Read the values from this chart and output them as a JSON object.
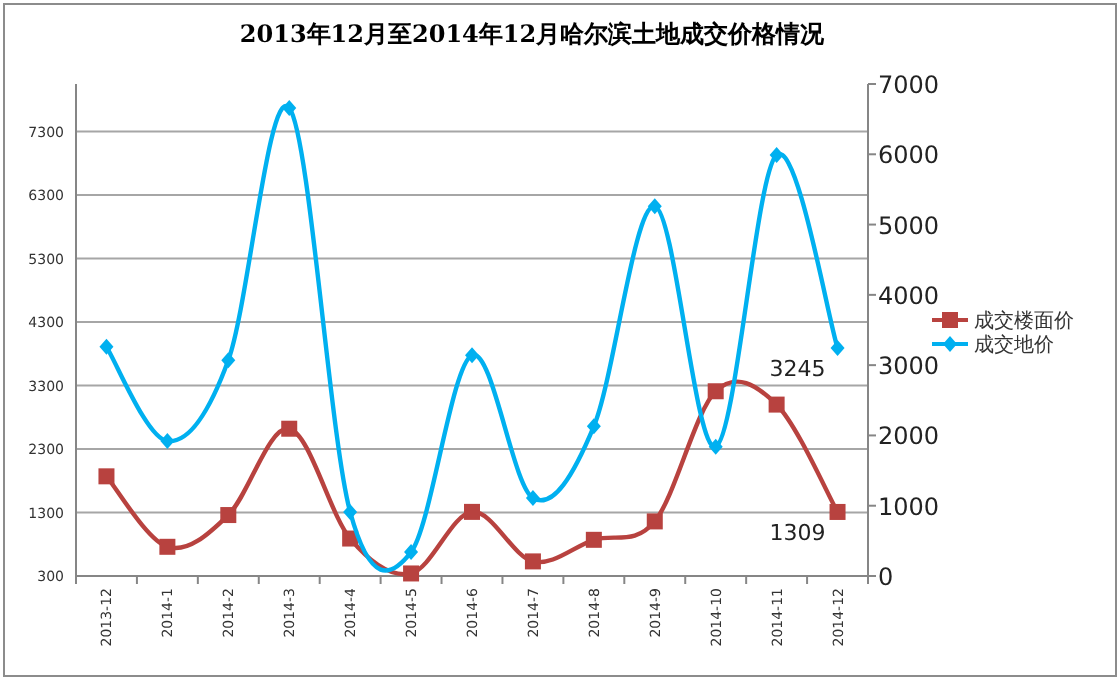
{
  "chart_data": {
    "type": "line",
    "title": "2013年12月至2014年12月哈尔滨土地成交价格情况",
    "categories": [
      "2013-12",
      "2014-1",
      "2014-2",
      "2014-3",
      "2014-4",
      "2014-5",
      "2014-6",
      "2014-7",
      "2014-8",
      "2014-9",
      "2014-10",
      "2014-11",
      "2014-12"
    ],
    "series": [
      {
        "name": "成交楼面价",
        "color": "#b8423f",
        "marker": "square",
        "values": [
          1870,
          760,
          1260,
          2620,
          890,
          340,
          1310,
          530,
          870,
          1160,
          3210,
          3000,
          1309
        ],
        "value_labels": [
          null,
          null,
          null,
          null,
          null,
          null,
          null,
          null,
          null,
          null,
          null,
          null,
          "1309"
        ]
      },
      {
        "name": "成交地价",
        "color": "#00b0f0",
        "marker": "diamond",
        "axis": "y2",
        "values": [
          3260,
          1920,
          3070,
          6660,
          910,
          340,
          3140,
          1110,
          2130,
          5260,
          1840,
          5990,
          3245
        ],
        "value_labels": [
          null,
          null,
          null,
          null,
          null,
          null,
          null,
          null,
          null,
          null,
          null,
          null,
          "3245"
        ]
      }
    ],
    "ylim": [
      300,
      8050
    ],
    "yticks": [
      300,
      1300,
      2300,
      3300,
      4300,
      5300,
      6300,
      7300
    ],
    "y2lim": [
      0,
      7000
    ],
    "y2ticks": [
      0,
      1000,
      2000,
      3000,
      4000,
      5000,
      6000,
      7000
    ],
    "grid": "y",
    "legend": "right",
    "line_style": "solid"
  }
}
